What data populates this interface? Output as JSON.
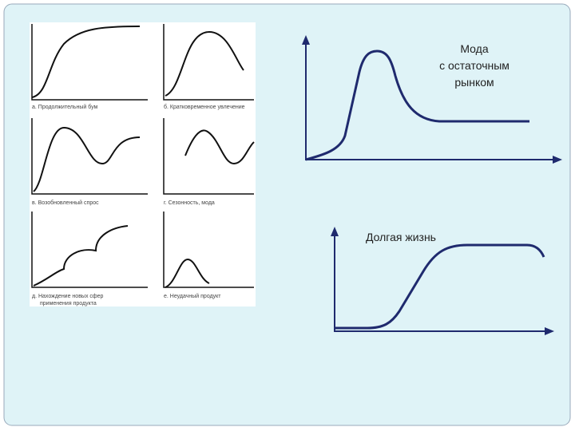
{
  "panels": [
    {
      "caption": [
        "а. Продолжительный бум"
      ]
    },
    {
      "caption": [
        "б. Кратковременное увлечение"
      ]
    },
    {
      "caption": [
        "в. Возобновленный спрос"
      ]
    },
    {
      "caption": [
        "г. Сезонность, мода"
      ]
    },
    {
      "caption": [
        "д. Нахождение новых сфер",
        "применения продукта"
      ]
    },
    {
      "caption": [
        "е. Неудачный продукт"
      ]
    }
  ],
  "fashion": {
    "label": [
      "Мода",
      "с остаточным",
      "рынком"
    ]
  },
  "long_life": {
    "label": [
      "Долгая жизнь"
    ]
  }
}
